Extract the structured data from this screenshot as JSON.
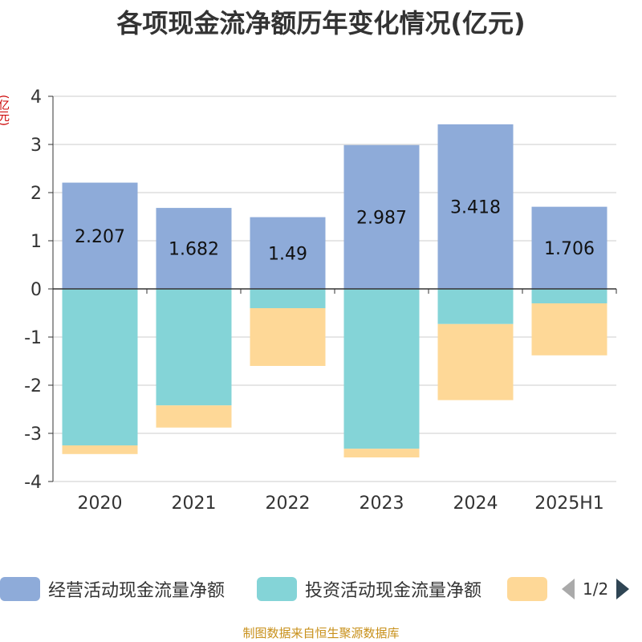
{
  "title": "各项现金流净额历年变化情况(亿元)",
  "unit_label": "(亿元)",
  "source": "制图数据来自恒生聚源数据库",
  "legend": {
    "items": [
      {
        "label": "经营活动现金流量净额",
        "color": "#8eabd9"
      },
      {
        "label": "投资活动现金流量净额",
        "color": "#84d4d7"
      },
      {
        "label": "",
        "color": "#fed897"
      }
    ],
    "page": "1/2"
  },
  "chart_data": {
    "type": "bar",
    "stacked": true,
    "categories": [
      "2020",
      "2021",
      "2022",
      "2023",
      "2024",
      "2025H1"
    ],
    "series": [
      {
        "name": "经营活动现金流量净额",
        "color": "#8eabd9",
        "values": [
          2.207,
          1.682,
          1.49,
          2.987,
          3.418,
          1.706
        ],
        "labels": [
          "2.207",
          "1.682",
          "1.49",
          "2.987",
          "3.418",
          "1.706"
        ]
      },
      {
        "name": "投资活动现金流量净额",
        "color": "#84d4d7",
        "values": [
          -3.25,
          -2.42,
          -0.4,
          -3.32,
          -0.73,
          -0.3
        ]
      },
      {
        "color": "#fed897",
        "values": [
          -0.18,
          -0.46,
          -1.2,
          -0.18,
          -1.58,
          -1.08
        ]
      }
    ],
    "ylim": [
      -4,
      4
    ],
    "yticks": [
      "4",
      "3",
      "2",
      "1",
      "0",
      "-1",
      "-2",
      "-3",
      "-4"
    ],
    "grid": true,
    "legend_position": "bottom"
  }
}
